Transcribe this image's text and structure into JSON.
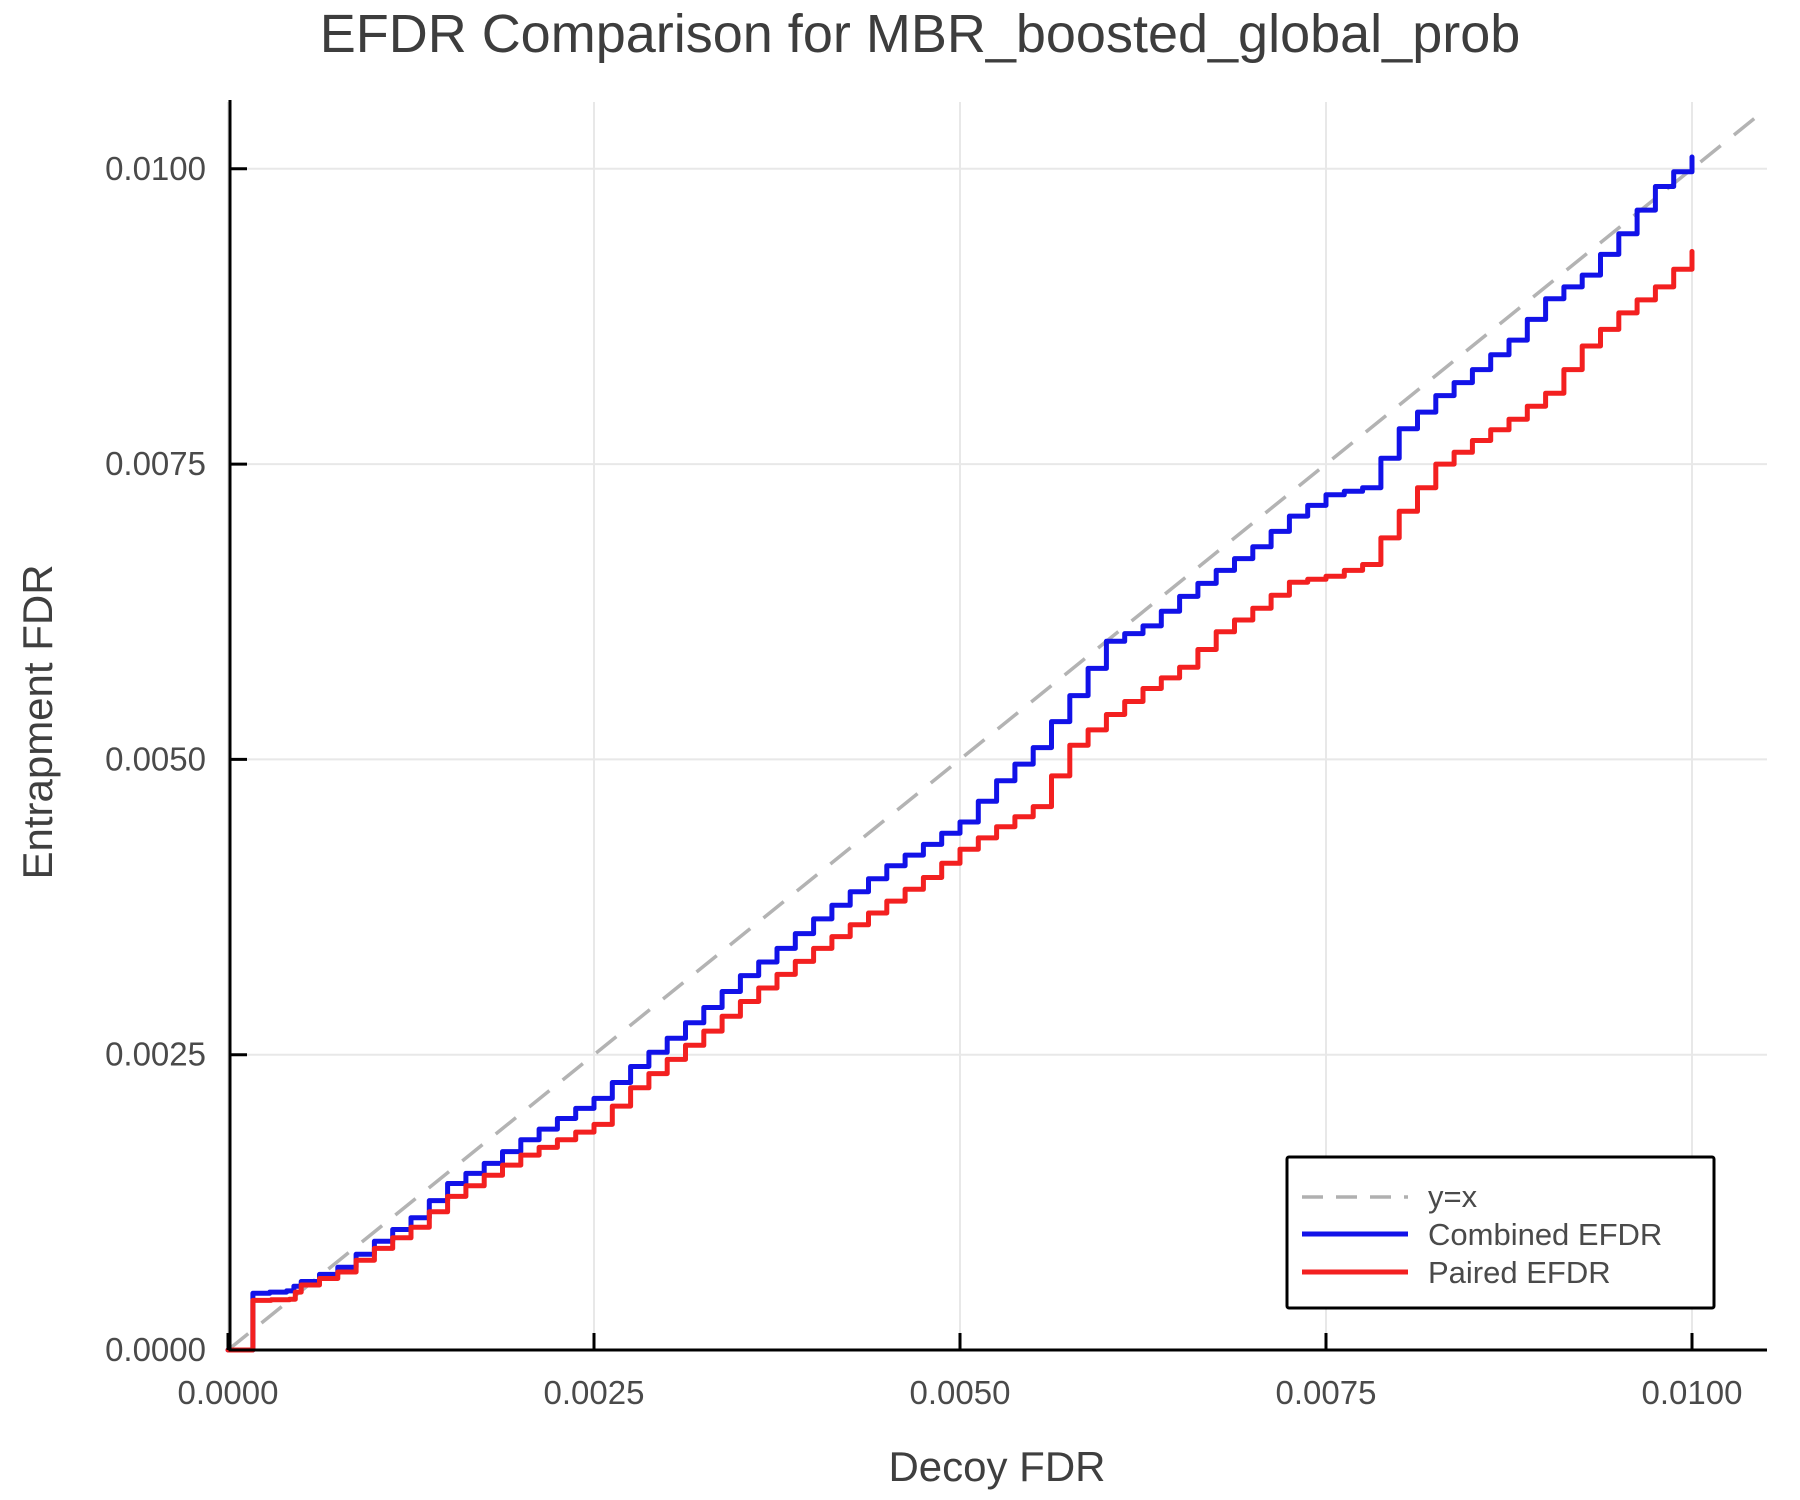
{
  "title": "EFDR Comparison for MBR_boosted_global_prob",
  "axes": {
    "x_label": "Decoy FDR",
    "y_label": "Entrapment FDR",
    "x_ticks": [
      {
        "value": 0.0,
        "label": "0.0000"
      },
      {
        "value": 0.0025,
        "label": "0.0025"
      },
      {
        "value": 0.005,
        "label": "0.0050"
      },
      {
        "value": 0.0075,
        "label": "0.0075"
      },
      {
        "value": 0.01,
        "label": "0.0100"
      }
    ],
    "y_ticks": [
      {
        "value": 0.0,
        "label": "0.0000"
      },
      {
        "value": 0.0025,
        "label": "0.0025"
      },
      {
        "value": 0.005,
        "label": "0.0050"
      },
      {
        "value": 0.0075,
        "label": "0.0075"
      },
      {
        "value": 0.01,
        "label": "0.0100"
      }
    ]
  },
  "legend": {
    "entries": [
      {
        "label": "y=x",
        "color": "#b0b0b0",
        "dash": true
      },
      {
        "label": "Combined EFDR",
        "color": "#1212e8",
        "dash": false
      },
      {
        "label": "Paired EFDR",
        "color": "#f32020",
        "dash": false
      }
    ]
  },
  "colors": {
    "combined": "#1212e8",
    "paired": "#f32020",
    "identity": "#b3b3b3",
    "grid": "#e8e8e8",
    "spine": "#000000",
    "text": "#3f3f3f"
  },
  "chart_data": {
    "type": "line",
    "title": "EFDR Comparison for MBR_boosted_global_prob",
    "xlabel": "Decoy FDR",
    "ylabel": "Entrapment FDR",
    "xlim": [
      0.0,
      0.0105
    ],
    "ylim": [
      0.0,
      0.0106
    ],
    "grid": true,
    "legend_position": "bottom-right",
    "reference_line": {
      "name": "y=x",
      "from": [
        0.0,
        0.0
      ],
      "slope": 1.0
    },
    "line_style": "step",
    "series": [
      {
        "name": "Combined EFDR",
        "color": "#1212e8",
        "points": [
          [
            0.0,
            0.0
          ],
          [
            0.00017,
            0.0
          ],
          [
            0.00017,
            0.00048
          ],
          [
            0.0004,
            0.0005
          ],
          [
            0.0005,
            0.00058
          ],
          [
            0.00075,
            0.0007
          ],
          [
            0.001,
            0.00092
          ],
          [
            0.00125,
            0.00112
          ],
          [
            0.0015,
            0.00141
          ],
          [
            0.00175,
            0.00158
          ],
          [
            0.002,
            0.00178
          ],
          [
            0.00225,
            0.00196
          ],
          [
            0.0025,
            0.00213
          ],
          [
            0.00275,
            0.0024
          ],
          [
            0.003,
            0.00264
          ],
          [
            0.00325,
            0.0029
          ],
          [
            0.0035,
            0.00317
          ],
          [
            0.00375,
            0.0034
          ],
          [
            0.004,
            0.00365
          ],
          [
            0.00425,
            0.00388
          ],
          [
            0.0045,
            0.0041
          ],
          [
            0.00475,
            0.00428
          ],
          [
            0.005,
            0.00447
          ],
          [
            0.00525,
            0.00482
          ],
          [
            0.0055,
            0.0051
          ],
          [
            0.00575,
            0.00554
          ],
          [
            0.006,
            0.006
          ],
          [
            0.00625,
            0.00613
          ],
          [
            0.0065,
            0.00638
          ],
          [
            0.00675,
            0.0066
          ],
          [
            0.007,
            0.0068
          ],
          [
            0.00725,
            0.00706
          ],
          [
            0.0075,
            0.00724
          ],
          [
            0.00775,
            0.0073
          ],
          [
            0.008,
            0.0078
          ],
          [
            0.00825,
            0.00808
          ],
          [
            0.0085,
            0.0083
          ],
          [
            0.00875,
            0.00855
          ],
          [
            0.009,
            0.0089
          ],
          [
            0.00925,
            0.0091
          ],
          [
            0.0095,
            0.00945
          ],
          [
            0.00975,
            0.00985
          ],
          [
            0.01,
            0.0101
          ]
        ]
      },
      {
        "name": "Paired EFDR",
        "color": "#f32020",
        "points": [
          [
            0.0,
            0.0
          ],
          [
            0.00017,
            0.0
          ],
          [
            0.00017,
            0.00042
          ],
          [
            0.00042,
            0.00043
          ],
          [
            0.0005,
            0.00055
          ],
          [
            0.00075,
            0.00066
          ],
          [
            0.001,
            0.00086
          ],
          [
            0.00125,
            0.00104
          ],
          [
            0.0015,
            0.0013
          ],
          [
            0.00175,
            0.00148
          ],
          [
            0.002,
            0.00165
          ],
          [
            0.00225,
            0.00178
          ],
          [
            0.0025,
            0.00191
          ],
          [
            0.00275,
            0.00222
          ],
          [
            0.003,
            0.00246
          ],
          [
            0.00325,
            0.0027
          ],
          [
            0.0035,
            0.00295
          ],
          [
            0.00375,
            0.00318
          ],
          [
            0.004,
            0.0034
          ],
          [
            0.00425,
            0.0036
          ],
          [
            0.0045,
            0.0038
          ],
          [
            0.00475,
            0.004
          ],
          [
            0.005,
            0.00424
          ],
          [
            0.00525,
            0.00443
          ],
          [
            0.0055,
            0.0046
          ],
          [
            0.00575,
            0.00512
          ],
          [
            0.006,
            0.00538
          ],
          [
            0.00625,
            0.0056
          ],
          [
            0.0065,
            0.00578
          ],
          [
            0.00675,
            0.00608
          ],
          [
            0.007,
            0.00628
          ],
          [
            0.00725,
            0.0065
          ],
          [
            0.0075,
            0.00655
          ],
          [
            0.00775,
            0.00665
          ],
          [
            0.008,
            0.0071
          ],
          [
            0.00825,
            0.0075
          ],
          [
            0.0085,
            0.0077
          ],
          [
            0.00875,
            0.00788
          ],
          [
            0.009,
            0.0081
          ],
          [
            0.00925,
            0.0085
          ],
          [
            0.0095,
            0.00878
          ],
          [
            0.00975,
            0.009
          ],
          [
            0.01,
            0.0093
          ]
        ]
      }
    ]
  }
}
